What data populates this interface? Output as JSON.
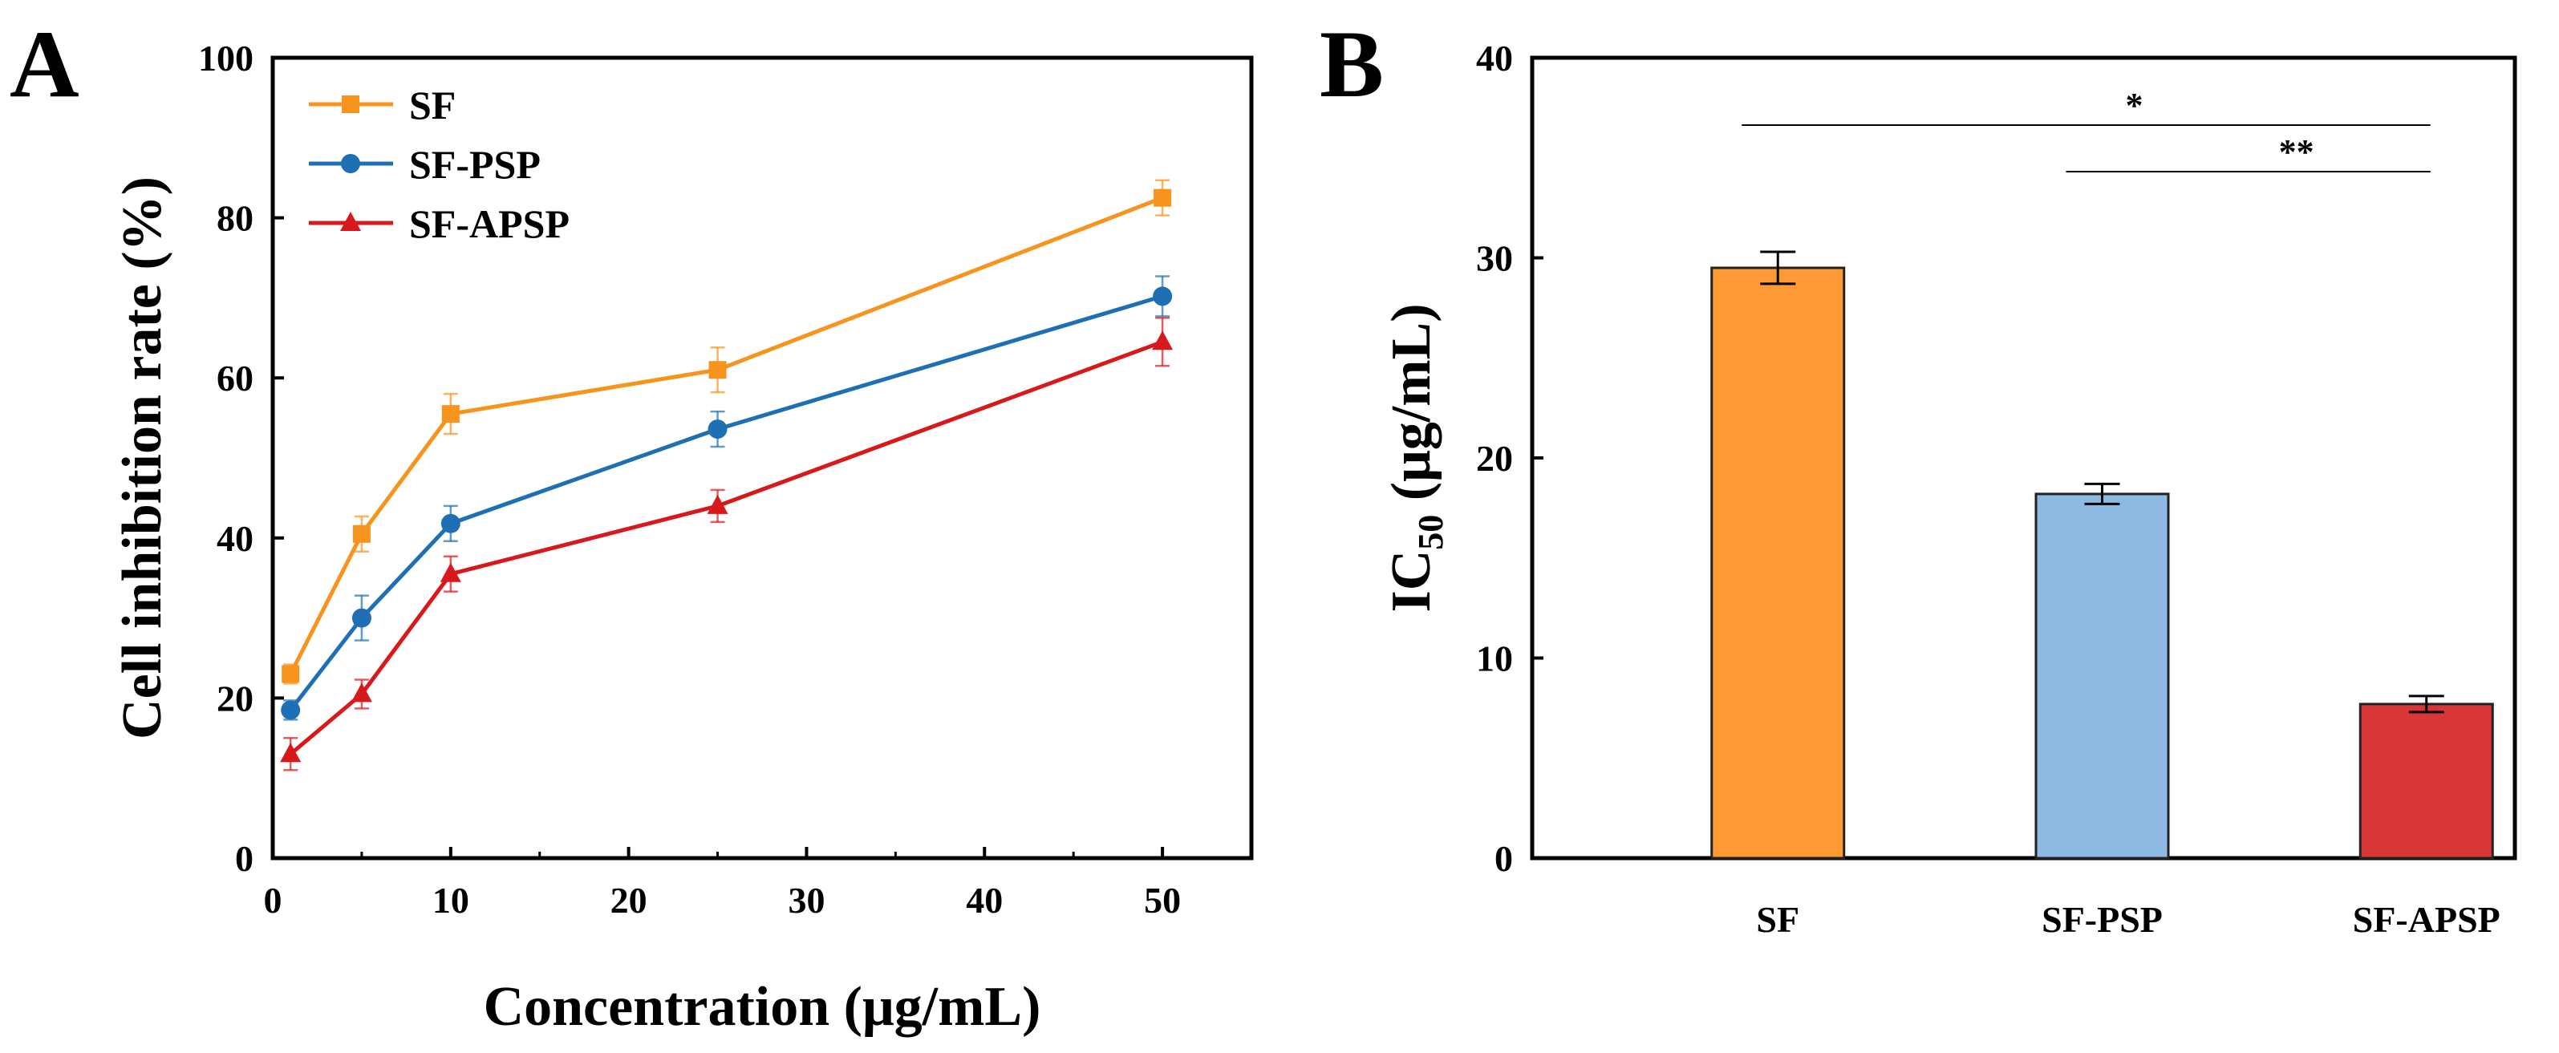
{
  "figure": {
    "panel_a_label": "A",
    "panel_b_label": "B"
  },
  "chart_data": [
    {
      "panel": "A",
      "type": "line",
      "title": "",
      "xlabel": "Concentration (μg/mL)",
      "ylabel": "Cell inhibition rate (%)",
      "xlim": [
        0,
        55
      ],
      "ylim": [
        0,
        100
      ],
      "xticks": [
        "0",
        "10",
        "20",
        "30",
        "40",
        "50"
      ],
      "yticks": [
        "0",
        "20",
        "40",
        "60",
        "80",
        "100"
      ],
      "legend_position": "top-left",
      "x": [
        1,
        5,
        10,
        25,
        50
      ],
      "series": [
        {
          "name": "SF",
          "color": "#F7941D",
          "marker": "square",
          "values": [
            23,
            40.5,
            55.5,
            61,
            82.5
          ],
          "errors": [
            1.2,
            2.2,
            2.5,
            2.8,
            2.2
          ]
        },
        {
          "name": "SF-PSP",
          "color": "#1F6FB4",
          "marker": "circle",
          "values": [
            18.5,
            30,
            41.8,
            53.6,
            70.2
          ],
          "errors": [
            1.2,
            2.8,
            2.2,
            2.2,
            2.5
          ]
        },
        {
          "name": "SF-APSP",
          "color": "#D7191C",
          "marker": "triangle",
          "values": [
            13,
            20.5,
            35.5,
            44,
            64.5
          ],
          "errors": [
            2.0,
            1.8,
            2.2,
            2.0,
            3.0
          ]
        }
      ]
    },
    {
      "panel": "B",
      "type": "bar",
      "title": "",
      "xlabel": "",
      "ylabel_main": "IC",
      "ylabel_sub": "50",
      "ylabel_rest": " (μg/mL)",
      "ylim": [
        0,
        40
      ],
      "yticks": [
        "0",
        "10",
        "20",
        "30",
        "40"
      ],
      "categories": [
        "SF",
        "SF-PSP",
        "SF-APSP"
      ],
      "values": [
        29.5,
        18.2,
        7.7
      ],
      "errors": [
        0.8,
        0.5,
        0.4
      ],
      "colors": [
        "#FF9933",
        "#8DB9E2",
        "#D93636"
      ],
      "significance": [
        {
          "label": "*",
          "from": 0,
          "to": 2
        },
        {
          "label": "**",
          "from": 1,
          "to": 2
        }
      ]
    }
  ]
}
